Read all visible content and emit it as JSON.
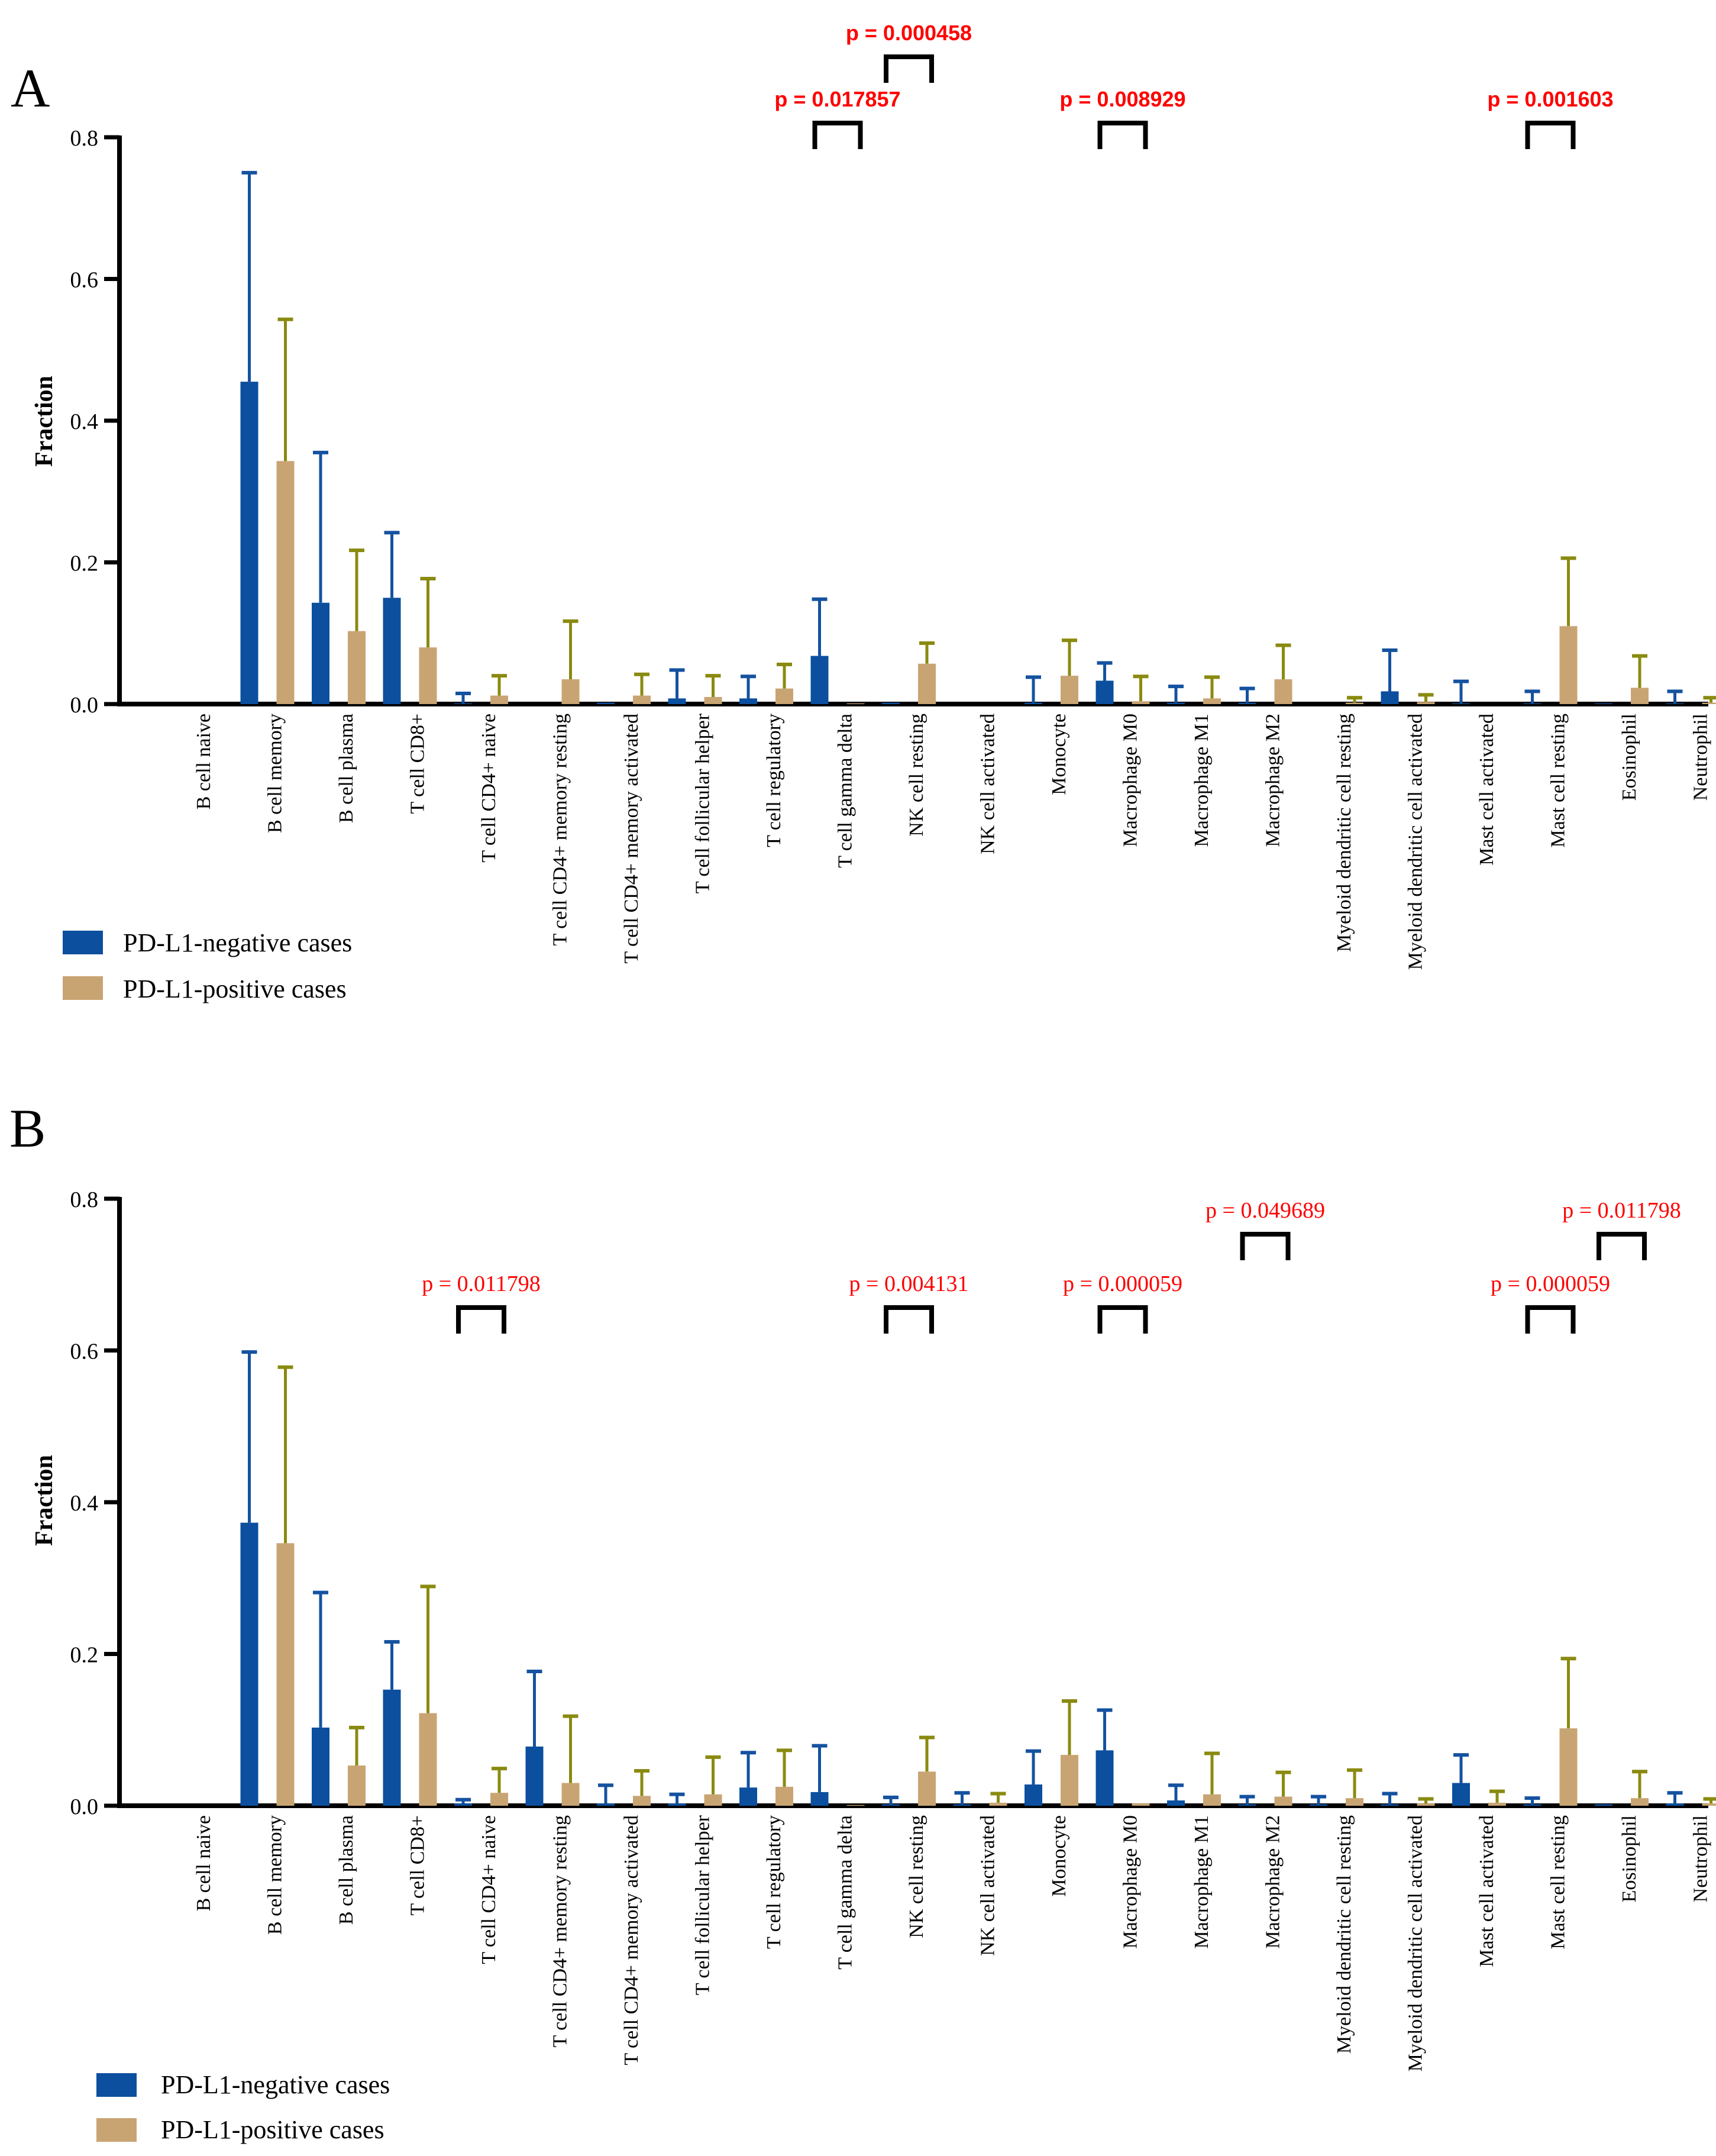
{
  "figure": {
    "colors": {
      "negative": "#0b4f9e",
      "negative_err": "#1552a0",
      "positive": "#c9a473",
      "positive_err": "#8a8a10",
      "pvalue": "#ff0000",
      "axis": "#000000"
    }
  },
  "chart_data": [
    {
      "panel_label": "A",
      "type": "bar",
      "title": "",
      "xlabel": "",
      "ylabel": "Fraction",
      "ylim": [
        0,
        0.8
      ],
      "yticks": [
        "0.0",
        "0.2",
        "0.4",
        "0.6",
        "0.8"
      ],
      "categories": [
        "B cell naive",
        "B cell memory",
        "B cell plasma",
        "T cell CD8+",
        "T cell CD4+ naive",
        "T cell CD4+ memory resting",
        "T cell CD4+ memory activated",
        "T cell follicular helper",
        "T cell regulatory",
        "T cell gamma delta",
        "NK cell resting",
        "NK cell activated",
        "Monocyte",
        "Macrophage M0",
        "Macrophage M1",
        "Macrophage M2",
        "Myeloid dendritic cell resting",
        "Myeloid dendritic cell activated",
        "Mast cell activated",
        "Mast cell resting",
        "Eosinophil",
        "Neutrophil"
      ],
      "series": [
        {
          "name": "PD-L1-negative cases",
          "values": [
            0,
            0.455,
            0.143,
            0.15,
            0.001,
            0,
            0.002,
            0.008,
            0.008,
            0.068,
            0.002,
            0,
            0.002,
            0.033,
            0.002,
            0.002,
            0,
            0.018,
            0.001,
            0.001,
            0.001,
            0.001
          ],
          "error": [
            0,
            0.295,
            0.212,
            0.092,
            0.014,
            0,
            0,
            0.04,
            0.031,
            0.08,
            0,
            0,
            0.036,
            0.025,
            0.023,
            0.02,
            0,
            0.058,
            0.031,
            0.017,
            0,
            0.017
          ]
        },
        {
          "name": "PD-L1-positive cases",
          "values": [
            0,
            0.343,
            0.103,
            0.08,
            0.012,
            0.035,
            0.012,
            0.01,
            0.022,
            0.001,
            0.057,
            0,
            0.04,
            0.004,
            0.008,
            0.035,
            0.002,
            0.003,
            0,
            0.11,
            0.023,
            0.002
          ],
          "error": [
            0,
            0.2,
            0.114,
            0.097,
            0.028,
            0.082,
            0.03,
            0.03,
            0.034,
            0,
            0.029,
            0,
            0.05,
            0.035,
            0.03,
            0.048,
            0.007,
            0.01,
            0,
            0.096,
            0.045,
            0.007
          ]
        }
      ],
      "legend": {
        "placement": "bottom-left",
        "entries": [
          "PD-L1-negative cases",
          "PD-L1-positive cases"
        ]
      },
      "annotations": [
        {
          "category": "T cell gamma delta",
          "text": "p = 0.017857",
          "level": 0
        },
        {
          "category": "NK cell resting",
          "text": "p = 0.000458",
          "level": 1
        },
        {
          "category": "Macrophage M0",
          "text": "p = 0.008929",
          "level": 0
        },
        {
          "category": "Mast cell resting",
          "text": "p = 0.001603",
          "level": 0
        }
      ]
    },
    {
      "panel_label": "B",
      "type": "bar",
      "title": "",
      "xlabel": "",
      "ylabel": "Fraction",
      "ylim": [
        0,
        0.8
      ],
      "yticks": [
        "0.0",
        "0.2",
        "0.4",
        "0.6",
        "0.8"
      ],
      "categories": [
        "B cell naive",
        "B cell memory",
        "B cell plasma",
        "T cell CD8+",
        "T cell CD4+ naive",
        "T cell CD4+ memory resting",
        "T cell CD4+ memory activated",
        "T cell follicular helper",
        "T cell regulatory",
        "T cell gamma delta",
        "NK cell resting",
        "NK cell activated",
        "Monocyte",
        "Macrophage M0",
        "Macrophage M1",
        "Macrophage M2",
        "Myeloid dendritic cell resting",
        "Myeloid dendritic cell activated",
        "Mast cell activated",
        "Mast cell resting",
        "Eosinophil",
        "Neutrophil"
      ],
      "series": [
        {
          "name": "PD-L1-negative cases",
          "values": [
            0,
            0.373,
            0.103,
            0.153,
            0.003,
            0.078,
            0.003,
            0.003,
            0.024,
            0.018,
            0.002,
            0.002,
            0.028,
            0.073,
            0.007,
            0.002,
            0.002,
            0.002,
            0.03,
            0.002,
            0.002,
            0.003
          ],
          "error": [
            0,
            0.225,
            0.178,
            0.063,
            0.005,
            0.099,
            0.024,
            0.012,
            0.046,
            0.061,
            0.009,
            0.015,
            0.044,
            0.053,
            0.02,
            0.01,
            0.01,
            0.014,
            0.037,
            0.008,
            0,
            0.014
          ]
        },
        {
          "name": "PD-L1-positive cases",
          "values": [
            0,
            0.346,
            0.053,
            0.122,
            0.017,
            0.03,
            0.013,
            0.015,
            0.025,
            0.001,
            0.045,
            0.004,
            0.067,
            0.003,
            0.015,
            0.012,
            0.01,
            0.003,
            0.004,
            0.102,
            0.01,
            0.003
          ],
          "error": [
            0,
            0.232,
            0.05,
            0.167,
            0.032,
            0.088,
            0.033,
            0.049,
            0.048,
            0,
            0.045,
            0.012,
            0.071,
            0,
            0.054,
            0.032,
            0.037,
            0.006,
            0.015,
            0.092,
            0.035,
            0.006
          ]
        }
      ],
      "legend": {
        "placement": "bottom-left",
        "entries": [
          "PD-L1-negative cases",
          "PD-L1-positive cases"
        ]
      },
      "annotations": [
        {
          "category": "T cell CD4+ naive",
          "text": "p = 0.011798",
          "level": 0
        },
        {
          "category": "NK cell resting",
          "text": "p = 0.004131",
          "level": 0
        },
        {
          "category": "Macrophage M0",
          "text": "p = 0.000059",
          "level": 0
        },
        {
          "category": "Macrophage M2",
          "text": "p = 0.049689",
          "level": 1
        },
        {
          "category": "Mast cell resting",
          "text": "p = 0.000059",
          "level": 0
        },
        {
          "category": "Eosinophil",
          "text": "p = 0.011798",
          "level": 1
        }
      ]
    }
  ]
}
